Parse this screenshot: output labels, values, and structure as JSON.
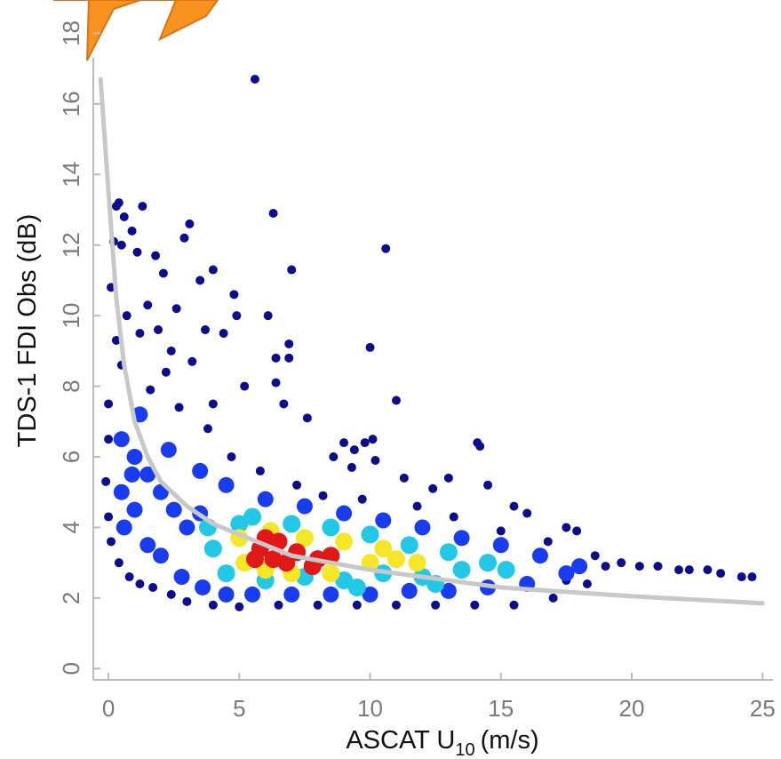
{
  "chart_data": {
    "type": "scatter",
    "x_label": {
      "main": "ASCAT U",
      "sub": "10",
      "unit": "(m/s)"
    },
    "y_label": "TDS-1 FDI Obs (dB)",
    "xlim": [
      -0.58,
      25.4
    ],
    "ylim": [
      -0.32,
      18.44
    ],
    "xticks": [
      0,
      5,
      10,
      15,
      20,
      25
    ],
    "yticks": [
      0,
      2,
      4,
      6,
      8,
      10,
      12,
      14,
      16,
      18
    ],
    "series": [
      {
        "color": "#0c0c8e",
        "x": [
          5.6,
          0.3,
          0.4,
          1.3,
          0.6,
          0.9,
          2.9,
          3.1,
          6.3,
          10.6,
          0.2,
          0.5,
          1.1,
          1.8,
          2.1,
          3.5,
          4.0,
          7.0,
          0.1,
          1.5,
          2.6,
          4.8,
          4.9,
          6.1,
          3.7,
          4.4,
          10.0,
          1.2,
          2.4,
          3.2,
          6.9,
          6.9,
          5.2,
          6.4,
          6.4,
          6.7,
          7.6,
          9.0,
          9.4,
          9.8,
          10.1,
          10.2,
          9.3,
          11.0,
          8.6,
          14.1,
          14.2,
          11.3,
          13.0,
          12.4,
          14.5,
          15.5,
          16.0,
          17.5,
          17.9,
          18.6,
          19.6,
          20.3,
          21.0,
          21.8,
          22.2,
          22.9,
          23.4,
          24.2,
          24.6,
          0.0,
          0.0,
          -0.1,
          0.0,
          0.1,
          0.4,
          0.8,
          1.2,
          1.7,
          2.4,
          3.0,
          4.0,
          5.0,
          6.5,
          8.0,
          9.5,
          11.0,
          12.5,
          14.0,
          15.5,
          17.0,
          18.3,
          0.5,
          1.6,
          2.7,
          3.8,
          4.7,
          5.8,
          7.2,
          8.2,
          9.7,
          11.8,
          13.2,
          15.0,
          16.8,
          19.0,
          17.5,
          0.7,
          1.9,
          2.2,
          4.0,
          0.3
        ],
        "y": [
          16.7,
          13.1,
          13.2,
          13.1,
          12.8,
          12.4,
          12.2,
          12.6,
          12.9,
          11.9,
          12.1,
          12.0,
          11.8,
          11.7,
          11.2,
          11.0,
          11.3,
          11.3,
          10.8,
          10.3,
          10.2,
          10.6,
          10.0,
          10.0,
          9.6,
          9.5,
          9.1,
          9.5,
          9.0,
          8.7,
          9.2,
          8.8,
          8.0,
          8.8,
          8.1,
          7.5,
          7.1,
          6.4,
          6.2,
          6.4,
          6.5,
          5.9,
          5.7,
          7.6,
          6.0,
          6.4,
          6.3,
          5.4,
          5.4,
          5.1,
          5.2,
          4.6,
          4.4,
          4.0,
          3.9,
          3.2,
          3.0,
          2.9,
          2.9,
          2.8,
          2.8,
          2.8,
          2.7,
          2.6,
          2.6,
          7.5,
          6.5,
          5.3,
          4.3,
          3.6,
          3.0,
          2.6,
          2.4,
          2.3,
          2.1,
          1.9,
          1.8,
          1.75,
          1.8,
          1.8,
          1.8,
          1.8,
          1.8,
          1.8,
          1.8,
          2.0,
          2.4,
          8.6,
          7.9,
          7.4,
          6.8,
          6.0,
          5.6,
          5.2,
          4.9,
          4.8,
          4.6,
          4.3,
          3.9,
          3.6,
          2.9,
          2.5,
          10.0,
          9.6,
          8.4,
          7.5,
          9.3
        ]
      },
      {
        "color": "#1a3cf0",
        "x": [
          0.5,
          1,
          1.5,
          0.5,
          1,
          2,
          2.5,
          3,
          3.5,
          0.6,
          1.5,
          2,
          2.8,
          3.6,
          4.5,
          5.5,
          7,
          8.5,
          10,
          11.5,
          13,
          14.5,
          16,
          17.5,
          16.5,
          15,
          13.5,
          12,
          10.5,
          9,
          7.5,
          6,
          4.5,
          3.5,
          1.2,
          2.3,
          0.9,
          18
        ],
        "y": [
          6.5,
          6,
          5.5,
          5,
          4.5,
          5,
          4.5,
          4,
          4.4,
          4,
          3.5,
          3.2,
          2.6,
          2.3,
          2.1,
          2.1,
          2.1,
          2.1,
          2.1,
          2.2,
          2.2,
          2.3,
          2.4,
          2.7,
          3.2,
          3.5,
          3.7,
          4.0,
          4.2,
          4.4,
          4.6,
          4.8,
          5.2,
          5.6,
          7.2,
          6.2,
          5.5,
          2.9
        ]
      },
      {
        "color": "#22c8e6",
        "x": [
          4,
          4.5,
          5,
          6,
          7.5,
          9,
          10.5,
          12,
          13.5,
          14.5,
          13,
          11.5,
          10,
          8.5,
          7,
          5.5,
          3.8,
          12.5,
          9.5,
          15.2
        ],
        "y": [
          3.4,
          2.7,
          4.1,
          2.5,
          2.6,
          2.5,
          2.7,
          2.6,
          2.8,
          3.0,
          3.3,
          3.5,
          3.8,
          4.0,
          4.1,
          4.3,
          4.0,
          2.4,
          2.3,
          2.8
        ]
      },
      {
        "color": "#f5e628",
        "x": [
          5,
          5.2,
          6,
          7,
          8.5,
          10,
          11,
          10.5,
          9,
          7.5,
          6.2,
          11.8
        ],
        "y": [
          3.7,
          3.0,
          2.8,
          2.7,
          2.7,
          3.0,
          3.1,
          3.4,
          3.6,
          3.7,
          3.9,
          3.0
        ]
      },
      {
        "color": "#e01818",
        "x": [
          5.8,
          6.3,
          6.8,
          7.2,
          6.5,
          8,
          8.5,
          7.8,
          6,
          5.6
        ],
        "y": [
          3.4,
          3.1,
          3.0,
          3.3,
          3.6,
          3.1,
          3.2,
          2.9,
          3.7,
          3.1
        ]
      },
      {
        "color": "#c8c8c8",
        "kind": "line",
        "x": [
          -0.3,
          0,
          0.3,
          0.6,
          1,
          1.5,
          2,
          3,
          4,
          5,
          7,
          10,
          15,
          20,
          25
        ],
        "y": [
          16.7,
          13.5,
          10.5,
          8.6,
          7.0,
          6.0,
          5.3,
          4.6,
          4.1,
          3.8,
          3.2,
          2.8,
          2.3,
          2.05,
          1.85
        ]
      }
    ]
  }
}
